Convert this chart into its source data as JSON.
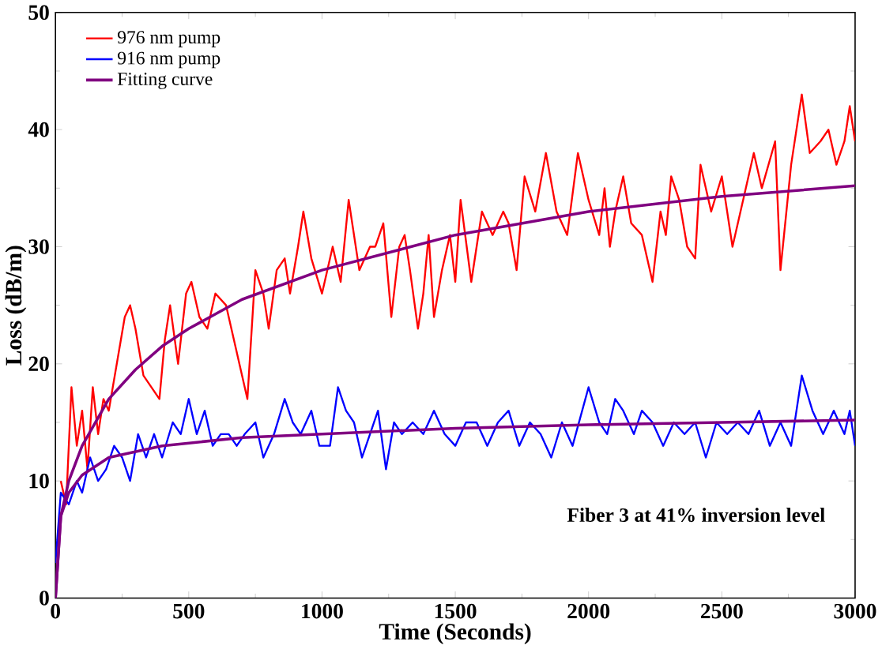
{
  "chart_data": {
    "type": "line",
    "xlabel": "Time (Seconds)",
    "ylabel": "Loss (dB/m)",
    "xlim": [
      0,
      3000
    ],
    "ylim": [
      0,
      50
    ],
    "xticks": [
      0,
      500,
      1000,
      1500,
      2000,
      2500,
      3000
    ],
    "yticks": [
      0,
      10,
      20,
      30,
      40,
      50
    ],
    "grid": false,
    "legend": "top left",
    "line_style": "solid",
    "marker": "none",
    "annotations": [
      "**Fiber 3 at 41% inversion level**"
    ],
    "series": [
      {
        "name": "976 nm pump",
        "color": "#ff0000",
        "x": [
          20,
          40,
          60,
          80,
          100,
          120,
          140,
          160,
          180,
          200,
          230,
          260,
          280,
          300,
          330,
          360,
          390,
          410,
          430,
          460,
          490,
          510,
          540,
          570,
          600,
          640,
          680,
          700,
          720,
          750,
          780,
          800,
          830,
          860,
          880,
          910,
          930,
          960,
          1000,
          1040,
          1070,
          1100,
          1140,
          1180,
          1200,
          1230,
          1260,
          1290,
          1310,
          1330,
          1360,
          1380,
          1400,
          1420,
          1450,
          1480,
          1500,
          1520,
          1560,
          1600,
          1640,
          1680,
          1700,
          1730,
          1760,
          1800,
          1840,
          1880,
          1920,
          1960,
          2000,
          2040,
          2060,
          2080,
          2100,
          2130,
          2160,
          2200,
          2240,
          2270,
          2290,
          2310,
          2340,
          2370,
          2400,
          2420,
          2460,
          2500,
          2540,
          2580,
          2620,
          2650,
          2700,
          2720,
          2760,
          2800,
          2830,
          2870,
          2900,
          2930,
          2960,
          2980,
          3000
        ],
        "values": [
          10,
          8,
          18,
          13,
          16,
          11,
          18,
          14,
          17,
          16,
          20,
          24,
          25,
          23,
          19,
          18,
          17,
          22,
          25,
          20,
          26,
          27,
          24,
          23,
          26,
          25,
          21,
          19,
          17,
          28,
          26,
          23,
          28,
          29,
          26,
          30,
          33,
          29,
          26,
          30,
          27,
          34,
          28,
          30,
          30,
          32,
          24,
          30,
          31,
          28,
          23,
          26,
          31,
          24,
          28,
          31,
          27,
          34,
          27,
          33,
          31,
          33,
          32,
          28,
          36,
          33,
          38,
          33,
          31,
          38,
          34,
          31,
          35,
          30,
          33,
          36,
          32,
          31,
          27,
          33,
          31,
          36,
          34,
          30,
          29,
          37,
          33,
          36,
          30,
          34,
          38,
          35,
          39,
          28,
          37,
          43,
          38,
          39,
          40,
          37,
          39,
          42,
          39
        ]
      },
      {
        "name": "916 nm pump",
        "color": "#0000ff",
        "x": [
          0,
          20,
          50,
          80,
          100,
          130,
          160,
          190,
          220,
          250,
          280,
          310,
          340,
          370,
          400,
          440,
          470,
          500,
          530,
          560,
          590,
          620,
          650,
          680,
          710,
          750,
          780,
          820,
          860,
          890,
          920,
          960,
          990,
          1030,
          1060,
          1090,
          1120,
          1150,
          1180,
          1210,
          1240,
          1270,
          1300,
          1340,
          1380,
          1420,
          1460,
          1500,
          1540,
          1580,
          1620,
          1660,
          1700,
          1740,
          1780,
          1820,
          1860,
          1900,
          1940,
          2000,
          2040,
          2070,
          2100,
          2130,
          2170,
          2200,
          2240,
          2280,
          2320,
          2360,
          2400,
          2440,
          2480,
          2520,
          2560,
          2600,
          2640,
          2680,
          2720,
          2760,
          2800,
          2840,
          2880,
          2920,
          2960,
          2980,
          3000
        ],
        "values": [
          3,
          9,
          8,
          10,
          9,
          12,
          10,
          11,
          13,
          12,
          10,
          14,
          12,
          14,
          12,
          15,
          14,
          17,
          14,
          16,
          13,
          14,
          14,
          13,
          14,
          15,
          12,
          14,
          17,
          15,
          14,
          16,
          13,
          13,
          18,
          16,
          15,
          12,
          14,
          16,
          11,
          15,
          14,
          15,
          14,
          16,
          14,
          13,
          15,
          15,
          13,
          15,
          16,
          13,
          15,
          14,
          12,
          15,
          13,
          18,
          15,
          14,
          17,
          16,
          14,
          16,
          15,
          13,
          15,
          14,
          15,
          12,
          15,
          14,
          15,
          14,
          16,
          13,
          15,
          13,
          19,
          16,
          14,
          16,
          14,
          16,
          13
        ]
      },
      {
        "name": "Fitting curve",
        "color": "#800080",
        "x": [
          0,
          20,
          50,
          100,
          200,
          300,
          400,
          500,
          700,
          1000,
          1500,
          2000,
          2500,
          3000
        ],
        "values": [
          0,
          7,
          10,
          13,
          17,
          19.5,
          21.5,
          23,
          25.5,
          28,
          31,
          33,
          34.3,
          35.2
        ]
      },
      {
        "color": "#800080",
        "x": [
          0,
          20,
          50,
          100,
          200,
          400,
          700,
          1000,
          1500,
          2000,
          2500,
          3000
        ],
        "values": [
          0,
          7,
          9,
          10.5,
          12,
          13,
          13.7,
          14,
          14.5,
          14.8,
          15,
          15.2
        ]
      }
    ]
  }
}
